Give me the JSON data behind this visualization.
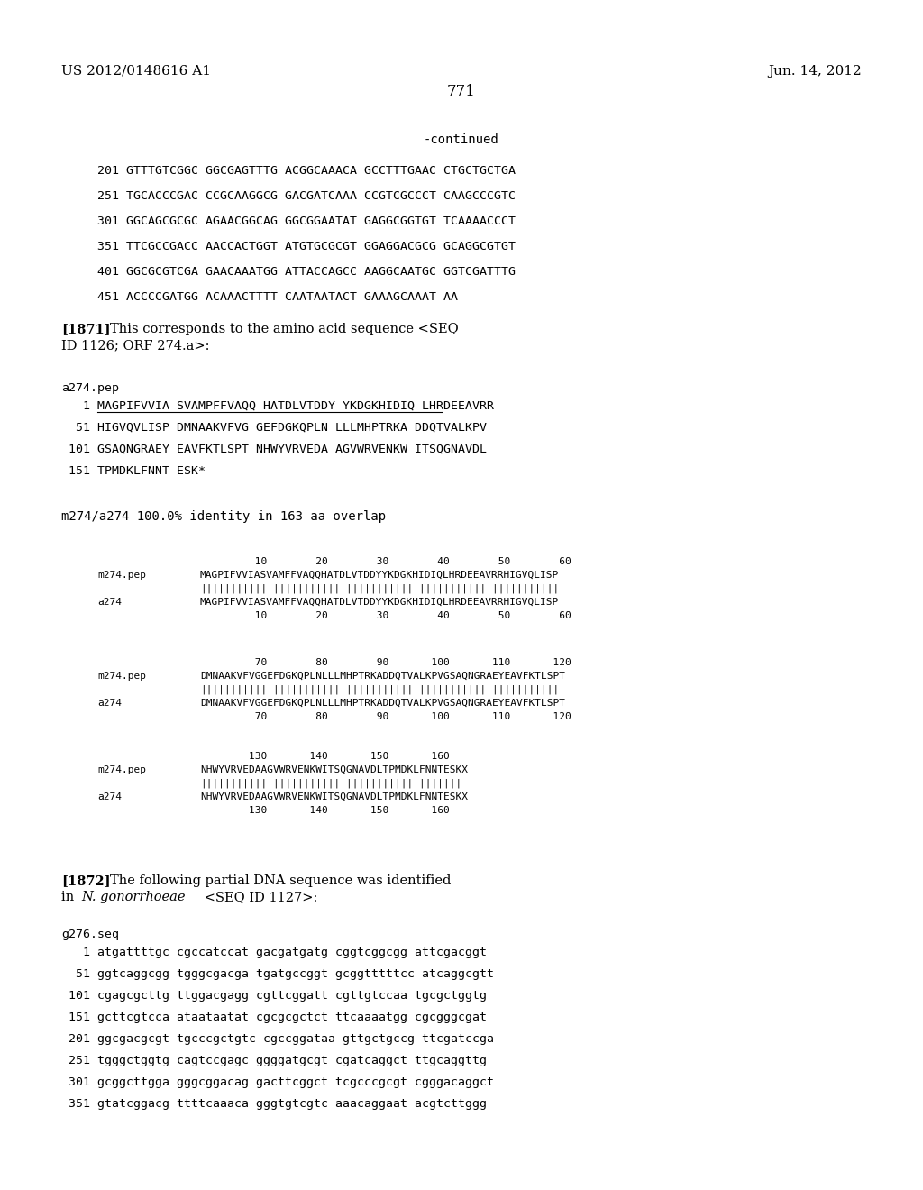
{
  "bg_color": "#ffffff",
  "header_left": "US 2012/0148616 A1",
  "header_right": "Jun. 14, 2012",
  "page_number": "771",
  "dna_lines": [
    "201 GTTTGTCGGC GGCGAGTTTG ACGGCAAACA GCCTTTGAAC CTGCTGCTGA",
    "251 TGCACCCGAC CCGCAAGGCG GACGATCAAA CCGTCGCCCT CAAGCCCGTC",
    "301 GGCAGCGCGC AGAACGGCAG GGCGGAATAT GAGGCGGTGT TCAAAACCCT",
    "351 TTCGCCGACC AACCACTGGT ATGTGCGCGT GGAGGACGCG GCAGGCGTGT",
    "401 GGCGCGTCGA GAACAAATGG ATTACCAGCC AAGGCAATGC GGTCGATTTG",
    "451 ACCCCGATGG ACAAACTTTT CAATAATACT GAAAGCAAAT AA"
  ],
  "pep_lines": [
    "   1 MAGPIFVVIA SVAMPFFVAQQ HATDLVTDDY YKDGKHIDIQ LHRDEEAVRR",
    "  51 HIGVQVLISP DMNAAKVFVG GEFDGKQPLN LLLMHPTRKA DDQTVALKPV",
    " 101 GSAQNGRAEY EAVFKTLSPT NHWYVRVEDA AGVWRVENKW ITSQGNAVDL",
    " 151 TPMDKLFNNT ESK*"
  ],
  "align_blocks": [
    {
      "nums_top": "         10        20        30        40        50        60",
      "label1": "m274.pep",
      "seq1": "MAGPIFVVIASVAMFFVAQQHATDLVTDDYYKDGKHIDIQLHRDEEAVRRHIGVQLISP",
      "match": "||||||||||||||||||||||||||||||||||||||||||||||||||||||||||||",
      "label2": "a274",
      "seq2": "MAGPIFVVIASVAMFFVAQQHATDLVTDDYYKDGKHIDIQLHRDEEAVRRHIGVQLISP",
      "nums_bot": "         10        20        30        40        50        60"
    },
    {
      "nums_top": "         70        80        90       100       110       120",
      "label1": "m274.pep",
      "seq1": "DMNAAKVFVGGEFDGKQPLNLLLMHPTRKADDQTVALKPVGSAQNGRAEYEAVFKTLSPT",
      "match": "||||||||||||||||||||||||||||||||||||||||||||||||||||||||||||",
      "label2": "a274",
      "seq2": "DMNAAKVFVGGEFDGKQPLNLLLMHPTRKADDQTVALKPVGSAQNGRAEYEAVFKTLSPT",
      "nums_bot": "         70        80        90       100       110       120"
    },
    {
      "nums_top": "        130       140       150       160",
      "label1": "m274.pep",
      "seq1": "NHWYVRVEDAAGVWRVENKWITSQGNAVDLTPMDKLFNNTESKX",
      "match": "|||||||||||||||||||||||||||||||||||||||||||",
      "label2": "a274",
      "seq2": "NHWYVRVEDAAGVWRVENKWITSQGNAVDLTPMDKLFNNTESKX",
      "nums_bot": "        130       140       150       160"
    }
  ],
  "g276_lines": [
    "   1 atgattttgc cgccatccat gacgatgatg cggtcggcgg attcgacggt",
    "  51 ggtcaggcgg tgggcgacga tgatgccggt gcggtttttcc atcaggcgtt",
    " 101 cgagcgcttg ttggacgagg cgttcggatt cgttgtccaa tgcgctggtg",
    " 151 gcttcgtcca ataataatat cgcgcgctct ttcaaaatgg cgcgggcgat",
    " 201 ggcgacgcgt tgcccgctgtc cgccggataa gttgctgccg ttcgatccga",
    " 251 tgggctggtg cagtccgagc ggggatgcgt cgatcaggct ttgcaggttg",
    " 301 gcggcttgga gggcggacag gacttcggct tcgcccgcgt cgggacaggct",
    " 351 gtatcggacg ttttcaaaca gggtgtcgtc aaacaggaat acgtcttggg"
  ]
}
